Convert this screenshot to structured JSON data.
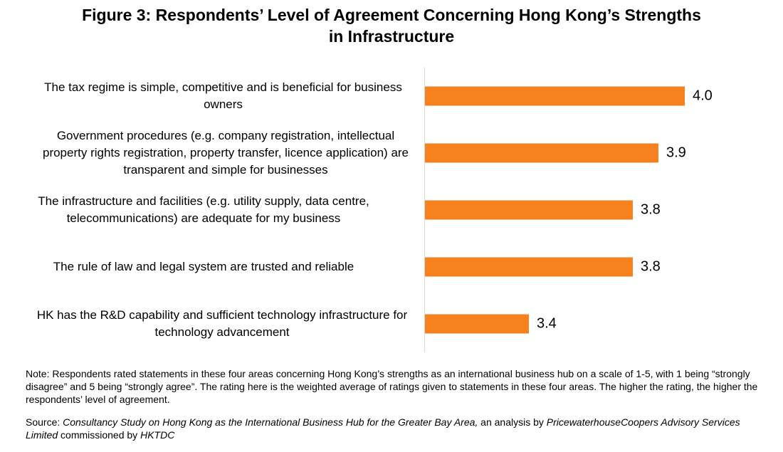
{
  "chart_data": {
    "type": "bar",
    "orientation": "horizontal",
    "title": "Figure 3: Respondents’ Level of Agreement Concerning Hong Kong’s Strengths in Infrastructure",
    "categories": [
      "The tax regime is simple, competitive and is beneficial for business owners",
      "Government procedures (e.g. company registration, intellectual property rights registration, property transfer, licence application) are transparent and simple for businesses",
      "The infrastructure and facilities (e.g. utility supply, data centre, telecommunications) are adequate for my business",
      "The rule of law and legal system are trusted and reliable",
      "HK has the R&D capability and sufficient technology infrastructure for technology advancement"
    ],
    "values": [
      4.0,
      3.9,
      3.8,
      3.8,
      3.4
    ],
    "value_labels": [
      "4.0",
      "3.9",
      "3.8",
      "3.8",
      "3.4"
    ],
    "xlabel": "",
    "ylabel": "",
    "xlim": [
      3.0,
      4.1
    ],
    "grid": false,
    "legend": false,
    "bar_color": "#F5821F",
    "axis_line_color": "#D9D9D9",
    "value_label_color": "#000000"
  },
  "note": "Note: Respondents rated statements in these four areas concerning Hong Kong’s strengths as an international business hub on a scale of 1-5, with 1 being “strongly disagree” and 5 being “strongly agree”. The rating here is the weighted average of ratings given to statements in these four areas. The higher the rating, the higher the respondents’ level of agreement.",
  "source": {
    "segments": [
      {
        "text": "Source: ",
        "italic": false
      },
      {
        "text": "Consultancy Study on Hong Kong as the International Business Hub for the Greater Bay Area,",
        "italic": true
      },
      {
        "text": " an analysis by ",
        "italic": false
      },
      {
        "text": "PricewaterhouseCoopers Advisory Services Limited",
        "italic": true
      },
      {
        "text": " commissioned by ",
        "italic": false
      },
      {
        "text": "HKTDC",
        "italic": true
      }
    ]
  }
}
